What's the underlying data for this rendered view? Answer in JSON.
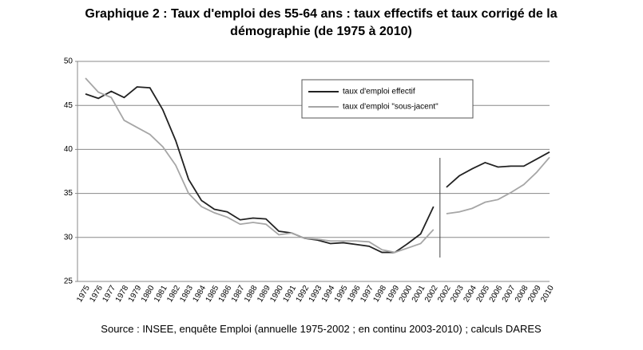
{
  "chart_data": {
    "type": "line",
    "title": [
      "Graphique 2 : Taux d'emploi des 55-64 ans : taux effectifs et taux corrigé de la",
      "démographie (de 1975 à 2010)"
    ],
    "source": "Source : INSEE, enquête Emploi (annuelle 1975-2002 ; en continu 2003-2010) ; calculs DARES",
    "categories": [
      "1975",
      "1976",
      "1977",
      "1978",
      "1979",
      "1980",
      "1981",
      "1982",
      "1983",
      "1984",
      "1985",
      "1986",
      "1987",
      "1988",
      "1989",
      "1990",
      "1991",
      "1992",
      "1993",
      "1994",
      "1995",
      "1996",
      "1997",
      "1998",
      "1999",
      "2000",
      "2001",
      "2002",
      "2002",
      "2003",
      "2004",
      "2005",
      "2006",
      "2007",
      "2008",
      "2009",
      "2010"
    ],
    "series": [
      {
        "name": "taux d'emploi effectif",
        "color": "#222222",
        "values": [
          46.3,
          45.8,
          46.6,
          45.9,
          47.1,
          47.0,
          44.5,
          41.0,
          36.6,
          34.2,
          33.2,
          32.9,
          32.0,
          32.2,
          32.1,
          30.7,
          30.5,
          29.9,
          29.7,
          29.3,
          29.4,
          29.2,
          29.0,
          28.3,
          28.3,
          29.3,
          30.4,
          33.5,
          35.7,
          37.0,
          37.8,
          38.5,
          38.0,
          38.1,
          38.1,
          38.9,
          39.7
        ]
      },
      {
        "name": "taux d'emploi \"sous-jacent\"",
        "color": "#a6a6a6",
        "values": [
          48.1,
          46.5,
          45.9,
          43.3,
          42.5,
          41.7,
          40.3,
          38.2,
          35.0,
          33.5,
          32.8,
          32.3,
          31.5,
          31.7,
          31.5,
          30.3,
          30.5,
          29.9,
          29.8,
          29.6,
          29.6,
          29.6,
          29.5,
          28.6,
          28.3,
          28.8,
          29.3,
          30.9,
          32.7,
          32.9,
          33.3,
          34.0,
          34.3,
          35.1,
          36.0,
          37.4,
          39.1
        ]
      }
    ],
    "ylim": [
      25,
      50
    ],
    "yticks": [
      25,
      30,
      35,
      40,
      45,
      50
    ],
    "grid": true
  }
}
